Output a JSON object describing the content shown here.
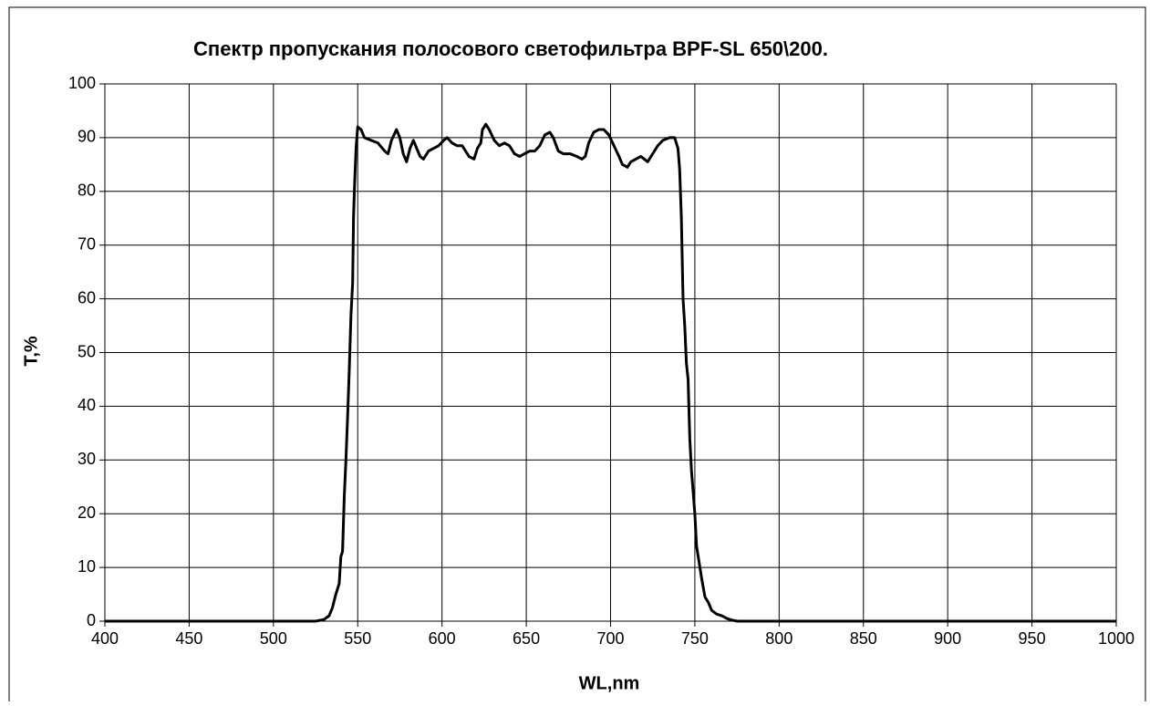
{
  "chart_data": {
    "type": "line",
    "title": "Спектр пропускания полосового светофильтра BPF-SL 650\\200.",
    "x_label": "WL,nm",
    "y_label": "T,%",
    "color": "#000000",
    "grid": true,
    "xlim": [
      400,
      1000
    ],
    "xticks": [
      400,
      450,
      500,
      550,
      600,
      650,
      700,
      750,
      800,
      850,
      900,
      950,
      1000
    ],
    "ylim": [
      0,
      100
    ],
    "yticks": [
      0,
      10,
      20,
      30,
      40,
      50,
      60,
      70,
      80,
      90,
      100
    ],
    "x": [
      400,
      450,
      500,
      525,
      530,
      533,
      535,
      537,
      539,
      540,
      541,
      542,
      543,
      544,
      545,
      546,
      547,
      547.5,
      548,
      549,
      550,
      552,
      554,
      558,
      562,
      566,
      568,
      570,
      573,
      575,
      577,
      579,
      581,
      583,
      585,
      587,
      589,
      592,
      595,
      598,
      601,
      603,
      606,
      609,
      612,
      614,
      616,
      619,
      621,
      623,
      624,
      626,
      628,
      631,
      634,
      637,
      640,
      643,
      646,
      649,
      652,
      655,
      658,
      661,
      664,
      666,
      669,
      672,
      676,
      680,
      683,
      685,
      687,
      690,
      693,
      696,
      699,
      702,
      705,
      707,
      710,
      712,
      715,
      718,
      720,
      722,
      725,
      728,
      731,
      735,
      738,
      740,
      741,
      742,
      743,
      744,
      745,
      746,
      747,
      748,
      749,
      750,
      751,
      752,
      754,
      756,
      758,
      760,
      763,
      766,
      769,
      772,
      775,
      800,
      900,
      1000
    ],
    "values": [
      0,
      0,
      0,
      0,
      0.3,
      1,
      2.5,
      5,
      7,
      12,
      13,
      23,
      30,
      38,
      47,
      57,
      63,
      75,
      80,
      88,
      92,
      91.5,
      90,
      89.5,
      89,
      87.5,
      87,
      89.5,
      91.5,
      90,
      87,
      85.5,
      88,
      89.5,
      88,
      86.5,
      86,
      87.5,
      88,
      88.5,
      89.5,
      90,
      89,
      88.5,
      88.5,
      87.5,
      86.5,
      86,
      88,
      89,
      91.5,
      92.5,
      91.5,
      89.5,
      88.5,
      89,
      88.5,
      87,
      86.5,
      87,
      87.5,
      87.5,
      88.5,
      90.5,
      91,
      90,
      87.5,
      87,
      87,
      86.5,
      86,
      86.5,
      89,
      91,
      91.5,
      91.5,
      90.5,
      88.5,
      86.5,
      85,
      84.5,
      85.5,
      86,
      86.5,
      86,
      85.5,
      87,
      88.5,
      89.5,
      90,
      90,
      88,
      84,
      75,
      60,
      55,
      48,
      45,
      34,
      28,
      24,
      20,
      14,
      12,
      8,
      4.5,
      3.5,
      2,
      1.3,
      1,
      0.5,
      0.2,
      0,
      0,
      0,
      0
    ]
  }
}
